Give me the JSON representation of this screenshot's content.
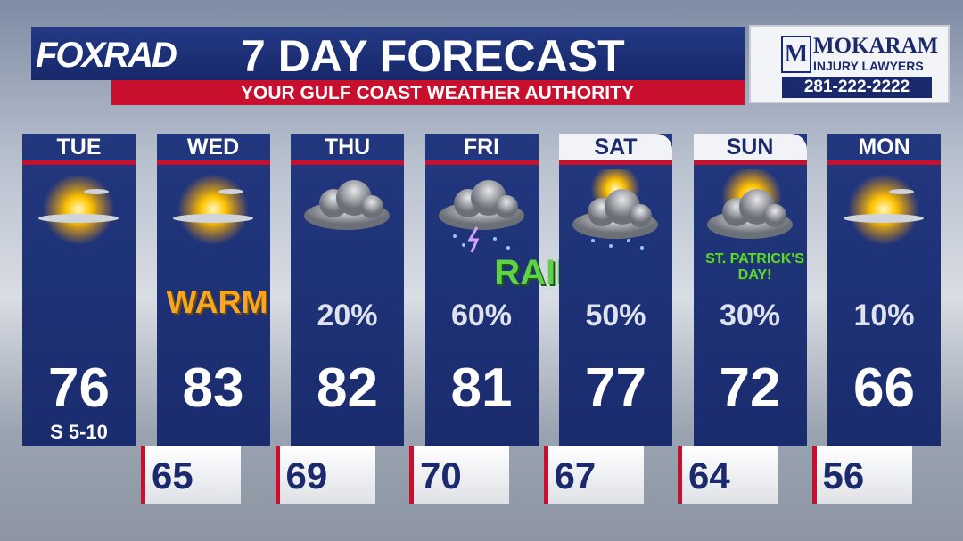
{
  "header": {
    "logo": "FOXRAD",
    "title": "7 DAY FORECAST",
    "subtitle": "YOUR GULF COAST WEATHER AUTHORITY"
  },
  "sponsor": {
    "name": "MOKARAM",
    "tagline": "INJURY LAWYERS",
    "phone": "281-222-2222"
  },
  "days": [
    {
      "day": "TUE",
      "high": 76,
      "wind": "S 5-10"
    },
    {
      "day": "WED",
      "note": "WARM",
      "high": 83
    },
    {
      "day": "THU",
      "rain": "20%",
      "high": 82
    },
    {
      "day": "FRI",
      "note": "RAINY",
      "rain": "60%",
      "high": 81
    },
    {
      "day": "SAT",
      "rain": "50%",
      "high": 77
    },
    {
      "day": "SUN",
      "note": "ST. PATRICK'S DAY!",
      "rain": "30%",
      "high": 72
    },
    {
      "day": "MON",
      "rain": "10%",
      "high": 66
    }
  ],
  "lows": [
    65,
    69,
    70,
    67,
    64,
    56
  ]
}
